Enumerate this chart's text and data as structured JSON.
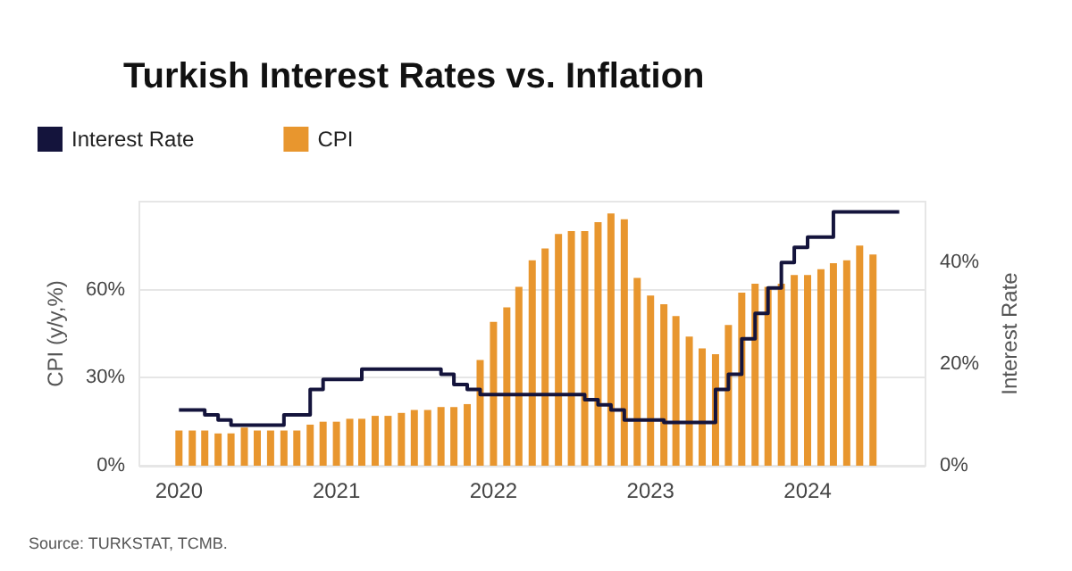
{
  "chart_data": {
    "type": "bar",
    "title": "Turkish Interest Rates vs. Inflation",
    "annotations": [
      "Source: TURKSTAT, TCMB."
    ],
    "ylabel": "CPI (y/y,%)",
    "y2label": "Interest Rate",
    "xlim": [
      "2019-10",
      "2024-10"
    ],
    "xticks": [
      "2020",
      "2021",
      "2022",
      "2023",
      "2024"
    ],
    "ylim": [
      0,
      90
    ],
    "yticks": [
      {
        "value": 0,
        "label": "0%"
      },
      {
        "value": 30,
        "label": "30%"
      },
      {
        "value": 60,
        "label": "60%"
      }
    ],
    "y2lim": [
      0,
      52
    ],
    "y2ticks": [
      {
        "value": 0,
        "label": "0%"
      },
      {
        "value": 20,
        "label": "20%"
      },
      {
        "value": 40,
        "label": "40%"
      }
    ],
    "grid": "y",
    "legend": "top left",
    "series": [
      {
        "name": "Interest Rate",
        "type": "step",
        "axis": "y2",
        "color": "#14143c",
        "x": [
          "2020-01",
          "2020-02",
          "2020-03",
          "2020-04",
          "2020-05",
          "2020-09",
          "2020-11",
          "2020-12",
          "2021-03",
          "2021-09",
          "2021-10",
          "2021-11",
          "2021-12",
          "2022-08",
          "2022-09",
          "2022-10",
          "2022-11",
          "2023-02",
          "2023-06",
          "2023-07",
          "2023-08",
          "2023-09",
          "2023-10",
          "2023-11",
          "2023-12",
          "2024-01",
          "2024-03",
          "2024-08"
        ],
        "values": [
          11,
          11,
          10,
          9,
          8,
          10,
          15,
          17,
          19,
          18,
          16,
          15,
          14,
          13,
          12,
          11,
          9,
          8.5,
          15,
          18,
          25,
          30,
          35,
          40,
          43,
          45,
          50,
          50
        ]
      },
      {
        "name": "CPI",
        "color": "#e8962e",
        "x": [
          "2020-01",
          "2020-02",
          "2020-03",
          "2020-04",
          "2020-05",
          "2020-06",
          "2020-07",
          "2020-08",
          "2020-09",
          "2020-10",
          "2020-11",
          "2020-12",
          "2021-01",
          "2021-02",
          "2021-03",
          "2021-04",
          "2021-05",
          "2021-06",
          "2021-07",
          "2021-08",
          "2021-09",
          "2021-10",
          "2021-11",
          "2021-12",
          "2022-01",
          "2022-02",
          "2022-03",
          "2022-04",
          "2022-05",
          "2022-06",
          "2022-07",
          "2022-08",
          "2022-09",
          "2022-10",
          "2022-11",
          "2022-12",
          "2023-01",
          "2023-02",
          "2023-03",
          "2023-04",
          "2023-05",
          "2023-06",
          "2023-07",
          "2023-08",
          "2023-09",
          "2023-10",
          "2023-11",
          "2023-12",
          "2024-01",
          "2024-02",
          "2024-03",
          "2024-04",
          "2024-05",
          "2024-06"
        ],
        "values": [
          12,
          12,
          12,
          11,
          11,
          13,
          12,
          12,
          12,
          12,
          14,
          15,
          15,
          16,
          16,
          17,
          17,
          18,
          19,
          19,
          20,
          20,
          21,
          36,
          49,
          54,
          61,
          70,
          74,
          79,
          80,
          80,
          83,
          86,
          84,
          64,
          58,
          55,
          51,
          44,
          40,
          38,
          48,
          59,
          62,
          61,
          62,
          65,
          65,
          67,
          69,
          70,
          75,
          72
        ]
      }
    ]
  }
}
